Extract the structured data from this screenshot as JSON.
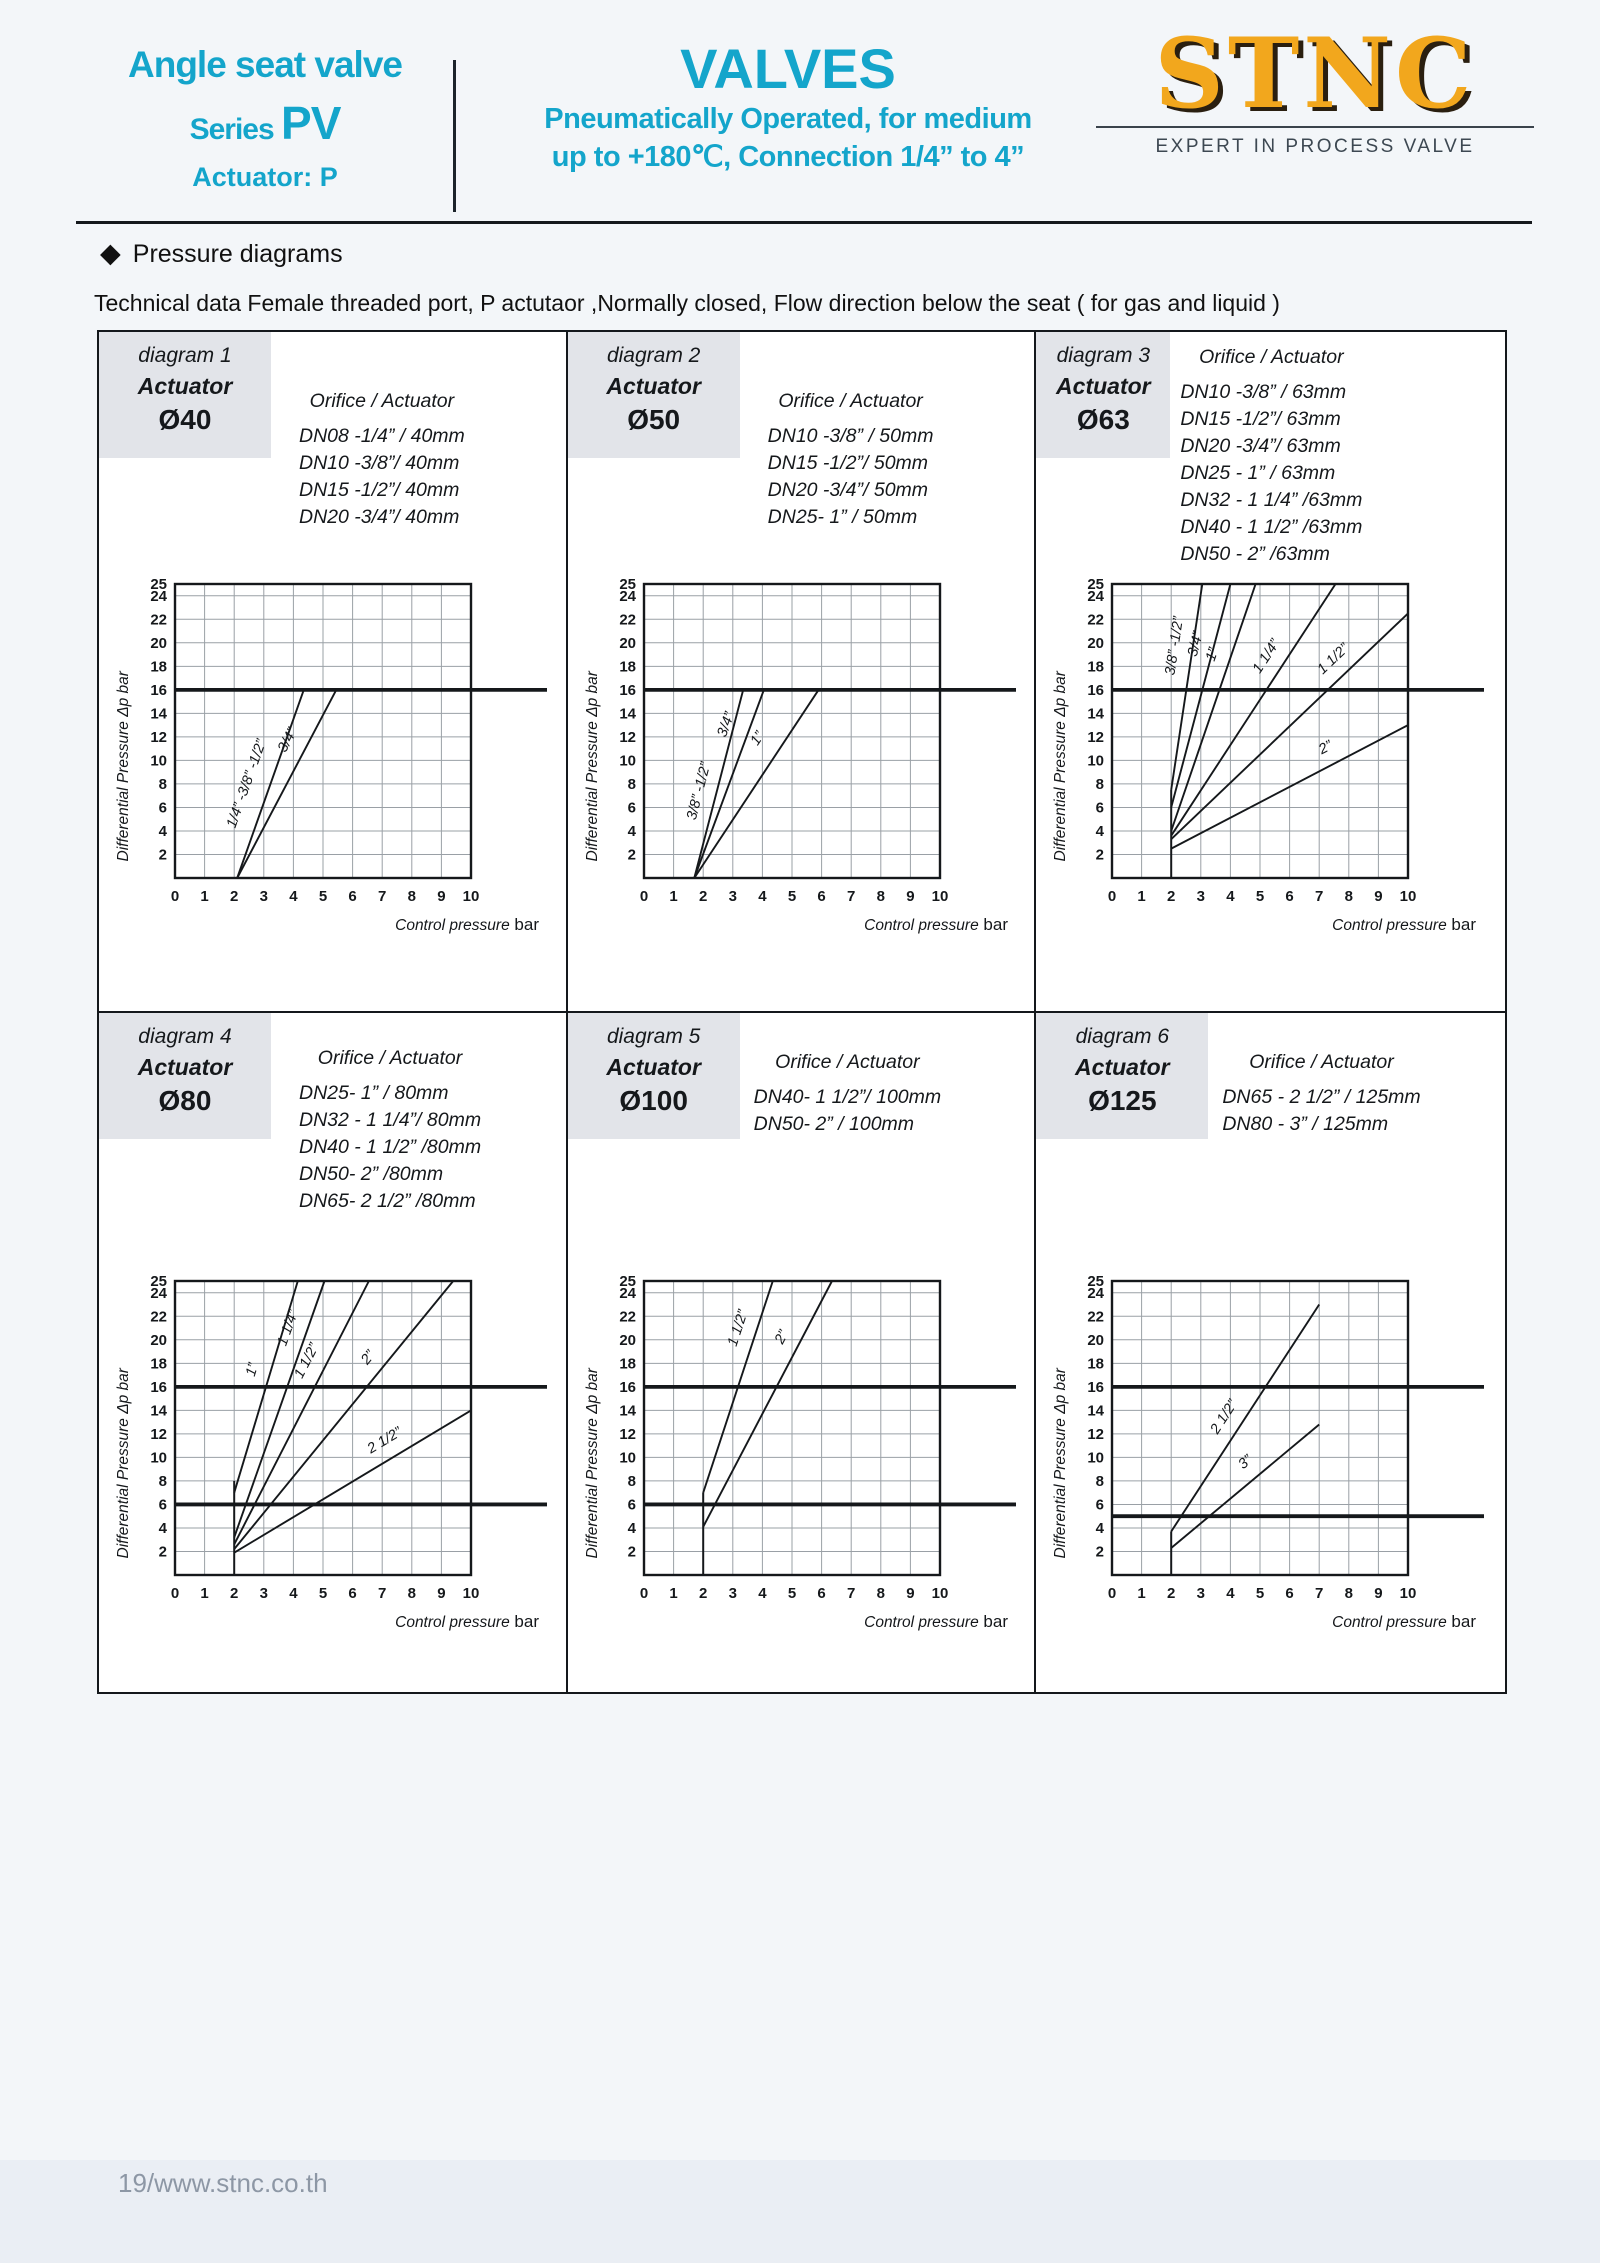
{
  "header": {
    "product": "Angle seat valve",
    "series_label": "Series",
    "series_value": "PV",
    "actuator_line": "Actuator:  P",
    "title": "VALVES",
    "subtitle1": "Pneumatically Operated, for medium",
    "subtitle2": "up to +180℃, Connection 1/4” to 4”",
    "brand": "STNC",
    "brand_tagline": "EXPERT IN PROCESS VALVE",
    "accent_color": "#14a5cb",
    "brand_color": "#f2a71d"
  },
  "section": {
    "heading": "Pressure diagrams",
    "description": "Technical data Female threaded port, P actutaor ,Normally closed, Flow direction below the seat ( for gas and liquid )"
  },
  "diagrams": [
    {
      "name": "diagram 1",
      "actuator_label": "Actuator",
      "size": "Ø40",
      "orifice_title": "Orifice / Actuator",
      "orifices": [
        "DN08 -1/4” / 40mm",
        "DN10 -3/8”/ 40mm",
        "DN15 -1/2”/ 40mm",
        "DN20 -3/4”/ 40mm"
      ]
    },
    {
      "name": "diagram 2",
      "actuator_label": "Actuator",
      "size": "Ø50",
      "orifice_title": "Orifice / Actuator",
      "orifices": [
        "DN10 -3/8” / 50mm",
        "DN15 -1/2”/ 50mm",
        "DN20 -3/4”/ 50mm",
        "DN25- 1” / 50mm"
      ]
    },
    {
      "name": "diagram 3",
      "actuator_label": "Actuator",
      "size": "Ø63",
      "orifice_title": "Orifice / Actuator",
      "orifices": [
        "DN10 -3/8” / 63mm",
        "DN15 -1/2”/ 63mm",
        "DN20 -3/4”/ 63mm",
        "DN25 - 1” / 63mm",
        "DN32 - 1 1/4” /63mm",
        "DN40 - 1 1/2” /63mm",
        "DN50 - 2”  /63mm"
      ]
    },
    {
      "name": "diagram 4",
      "actuator_label": "Actuator",
      "size": "Ø80",
      "orifice_title": "Orifice / Actuator",
      "orifices": [
        "DN25-  1” / 80mm",
        "DN32 - 1 1/4”/ 80mm",
        "DN40 - 1 1/2” /80mm",
        "DN50- 2”  /80mm",
        "DN65- 2 1/2” /80mm"
      ]
    },
    {
      "name": "diagram 5",
      "actuator_label": "Actuator",
      "size": "Ø100",
      "orifice_title": "Orifice / Actuator",
      "orifices": [
        "DN40- 1 1/2”/ 100mm",
        "DN50- 2” / 100mm"
      ]
    },
    {
      "name": "diagram 6",
      "actuator_label": "Actuator",
      "size": "Ø125",
      "orifice_title": "Orifice / Actuator",
      "orifices": [
        "DN65 - 2 1/2” / 125mm",
        "DN80 - 3” / 125mm"
      ]
    }
  ],
  "chart_data": [
    {
      "type": "line",
      "diagram": "diagram 1",
      "actuator": "Ø40",
      "xlabel": "Control pressure",
      "x_unit": "bar",
      "ylabel": "Differential Pressure Δp bar",
      "xlim": [
        0,
        10
      ],
      "ylim": [
        0,
        25
      ],
      "xticks": [
        0,
        1,
        2,
        3,
        4,
        5,
        6,
        7,
        8,
        9,
        10
      ],
      "yticks": [
        2,
        4,
        6,
        8,
        10,
        12,
        14,
        16,
        18,
        20,
        22,
        24,
        25
      ],
      "grid": true,
      "legend": "inline-labels",
      "bold_hlines": [
        16
      ],
      "series": [
        {
          "name": "1/4” -3/8”  -1/2”",
          "points": [
            [
              2.1,
              0
            ],
            [
              4.35,
              16
            ]
          ],
          "label_anchor": [
            3.0,
            7.5
          ]
        },
        {
          "name": "3/4”",
          "points": [
            [
              2.1,
              0
            ],
            [
              5.45,
              16
            ]
          ],
          "label_anchor": [
            4.35,
            11
          ]
        }
      ]
    },
    {
      "type": "line",
      "diagram": "diagram 2",
      "actuator": "Ø50",
      "xlabel": "Control pressure",
      "x_unit": "bar",
      "ylabel": "Differential Pressure Δp bar",
      "xlim": [
        0,
        10
      ],
      "ylim": [
        0,
        25
      ],
      "xticks": [
        0,
        1,
        2,
        3,
        4,
        5,
        6,
        7,
        8,
        9,
        10
      ],
      "yticks": [
        2,
        4,
        6,
        8,
        10,
        12,
        14,
        16,
        18,
        20,
        22,
        24,
        25
      ],
      "grid": true,
      "legend": "inline-labels",
      "bold_hlines": [
        16
      ],
      "series": [
        {
          "name": "3/8”  -1/2”",
          "points": [
            [
              1.7,
              0
            ],
            [
              3.35,
              16
            ]
          ],
          "label_anchor": [
            2.45,
            7
          ]
        },
        {
          "name": "3/4”",
          "points": [
            [
              1.7,
              0
            ],
            [
              4.05,
              16
            ]
          ],
          "label_anchor": [
            3.35,
            12.5
          ]
        },
        {
          "name": "1”",
          "points": [
            [
              1.7,
              0
            ],
            [
              5.9,
              16
            ]
          ],
          "label_anchor": [
            4.35,
            11
          ]
        }
      ]
    },
    {
      "type": "line",
      "diagram": "diagram 3",
      "actuator": "Ø63",
      "xlabel": "Control pressure",
      "x_unit": "bar",
      "ylabel": "Differential Pressure Δp bar",
      "xlim": [
        0,
        10
      ],
      "ylim": [
        0,
        25
      ],
      "xticks": [
        0,
        1,
        2,
        3,
        4,
        5,
        6,
        7,
        8,
        9,
        10
      ],
      "yticks": [
        2,
        4,
        6,
        8,
        10,
        12,
        14,
        16,
        18,
        20,
        22,
        24,
        25
      ],
      "grid": true,
      "legend": "inline-labels",
      "bold_hlines": [
        16
      ],
      "min_pressure_vline": {
        "x": 2,
        "to": 7.5
      },
      "series": [
        {
          "name": "3/8”  -1/2”",
          "points": [
            [
              2,
              7.5
            ],
            [
              3.05,
              25
            ]
          ],
          "label_anchor": [
            2.72,
            19.5
          ]
        },
        {
          "name": "3/4”",
          "points": [
            [
              2,
              6
            ],
            [
              4.0,
              25
            ]
          ],
          "label_anchor": [
            3.42,
            19.5
          ]
        },
        {
          "name": "1”",
          "points": [
            [
              2,
              4
            ],
            [
              4.85,
              25
            ]
          ],
          "label_anchor": [
            3.97,
            18.5
          ]
        },
        {
          "name": "1 1/4”",
          "points": [
            [
              2,
              3.6
            ],
            [
              7.55,
              25
            ]
          ],
          "label_anchor": [
            5.73,
            18
          ]
        },
        {
          "name": "1 1/2”",
          "points": [
            [
              2,
              3.3
            ],
            [
              10,
              22.5
            ]
          ],
          "label_anchor": [
            7.9,
            17.5
          ]
        },
        {
          "name": "2”",
          "points": [
            [
              2,
              2.5
            ],
            [
              10,
              13
            ]
          ],
          "label_anchor": [
            7.5,
            9.7
          ]
        }
      ]
    },
    {
      "type": "line",
      "diagram": "diagram 4",
      "actuator": "Ø80",
      "xlabel": "Control pressure",
      "x_unit": "bar",
      "ylabel": "Differential Pressure Δp bar",
      "xlim": [
        0,
        10
      ],
      "ylim": [
        0,
        25
      ],
      "xticks": [
        0,
        1,
        2,
        3,
        4,
        5,
        6,
        7,
        8,
        9,
        10
      ],
      "yticks": [
        2,
        4,
        6,
        8,
        10,
        12,
        14,
        16,
        18,
        20,
        22,
        24,
        25
      ],
      "grid": true,
      "legend": "inline-labels",
      "bold_hlines": [
        16,
        6
      ],
      "min_pressure_vline": {
        "x": 2,
        "to": 8
      },
      "series": [
        {
          "name": "1”",
          "points": [
            [
              2,
              7
            ],
            [
              4.15,
              25
            ]
          ],
          "label_anchor": [
            3.2,
            17
          ]
        },
        {
          "name": "1 1/4”",
          "points": [
            [
              2,
              3.2
            ],
            [
              5.05,
              25
            ]
          ],
          "label_anchor": [
            4.4,
            20.5
          ]
        },
        {
          "name": "1 1/2”",
          "points": [
            [
              2,
              2.6
            ],
            [
              6.55,
              25
            ]
          ],
          "label_anchor": [
            5.0,
            17.5
          ]
        },
        {
          "name": "2”",
          "points": [
            [
              2,
              2.2
            ],
            [
              9.4,
              25
            ]
          ],
          "label_anchor": [
            7.0,
            17.5
          ]
        },
        {
          "name": "2 1/2”",
          "points": [
            [
              2,
              1.9
            ],
            [
              10,
              14
            ]
          ],
          "label_anchor": [
            7.4,
            10.1
          ]
        }
      ]
    },
    {
      "type": "line",
      "diagram": "diagram 5",
      "actuator": "Ø100",
      "xlabel": "Control pressure",
      "x_unit": "bar",
      "ylabel": "Differential Pressure Δp bar",
      "xlim": [
        0,
        10
      ],
      "ylim": [
        0,
        25
      ],
      "xticks": [
        0,
        1,
        2,
        3,
        4,
        5,
        6,
        7,
        8,
        9,
        10
      ],
      "yticks": [
        2,
        4,
        6,
        8,
        10,
        12,
        14,
        16,
        18,
        20,
        22,
        24,
        25
      ],
      "grid": true,
      "legend": "inline-labels",
      "bold_hlines": [
        16,
        6
      ],
      "min_pressure_vline": {
        "x": 2,
        "to": 7
      },
      "series": [
        {
          "name": "1 1/2”",
          "points": [
            [
              2,
              7
            ],
            [
              4.35,
              25
            ]
          ],
          "label_anchor": [
            3.76,
            20.5
          ]
        },
        {
          "name": "2”",
          "points": [
            [
              2,
              4.1
            ],
            [
              6.35,
              25
            ]
          ],
          "label_anchor": [
            5.2,
            19.5
          ]
        }
      ]
    },
    {
      "type": "line",
      "diagram": "diagram 6",
      "actuator": "Ø125",
      "xlabel": "Control pressure",
      "x_unit": "bar",
      "ylabel": "Differential Pressure Δp bar",
      "xlim": [
        0,
        10
      ],
      "ylim": [
        0,
        25
      ],
      "xticks": [
        0,
        1,
        2,
        3,
        4,
        5,
        6,
        7,
        8,
        9,
        10
      ],
      "yticks": [
        2,
        4,
        6,
        8,
        10,
        12,
        14,
        16,
        18,
        20,
        22,
        24,
        25
      ],
      "grid": true,
      "legend": "inline-labels",
      "bold_hlines": [
        16,
        5
      ],
      "min_pressure_vline": {
        "x": 2,
        "to": 3.7
      },
      "series": [
        {
          "name": "2 1/2”",
          "points": [
            [
              2,
              3.7
            ],
            [
              7,
              23
            ]
          ],
          "label_anchor": [
            4.3,
            12.6
          ]
        },
        {
          "name": "3”",
          "points": [
            [
              2,
              2.3
            ],
            [
              7,
              12.8
            ]
          ],
          "label_anchor": [
            4.9,
            8.4
          ]
        }
      ]
    }
  ],
  "page": {
    "footer": "19/www.stnc.co.th"
  }
}
